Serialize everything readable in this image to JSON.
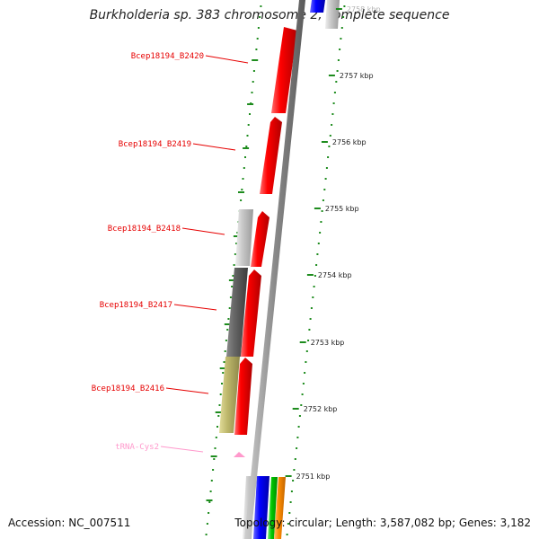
{
  "title": "Burkholderia sp. 383 chromosome 2, complete sequence",
  "footer": {
    "accession": "Accession: NC_007511",
    "summary": "Topology: circular; Length: 3,587,082 bp; Genes: 3,182"
  },
  "ticks": [
    {
      "label": "2758 kbp",
      "faded": true
    },
    {
      "label": "2757 kbp"
    },
    {
      "label": "2756 kbp"
    },
    {
      "label": "2755 kbp"
    },
    {
      "label": "2754 kbp"
    },
    {
      "label": "2753 kbp"
    },
    {
      "label": "2752 kbp"
    },
    {
      "label": "2751 kbp"
    }
  ],
  "gene_labels": [
    {
      "text": "Bcep18194_B2420",
      "color": "#e60000"
    },
    {
      "text": "Bcep18194_B2419",
      "color": "#e60000"
    },
    {
      "text": "Bcep18194_B2418",
      "color": "#e60000"
    },
    {
      "text": "Bcep18194_B2417",
      "color": "#e60000"
    },
    {
      "text": "Bcep18194_B2416",
      "color": "#e60000"
    },
    {
      "text": "tRNA-Cys2",
      "color": "#ff99cc"
    }
  ],
  "colors": {
    "cds_red": "#ff0000",
    "light_gray": "#c8c8c8",
    "dark_gray": "#646464",
    "khaki": "#bdb76b",
    "blue": "#0000ff",
    "green": "#00c800",
    "orange": "#ff8c00",
    "trna_pink": "#ff99cc",
    "backbone": "#888888",
    "tick_green": "#1e8c1e"
  }
}
